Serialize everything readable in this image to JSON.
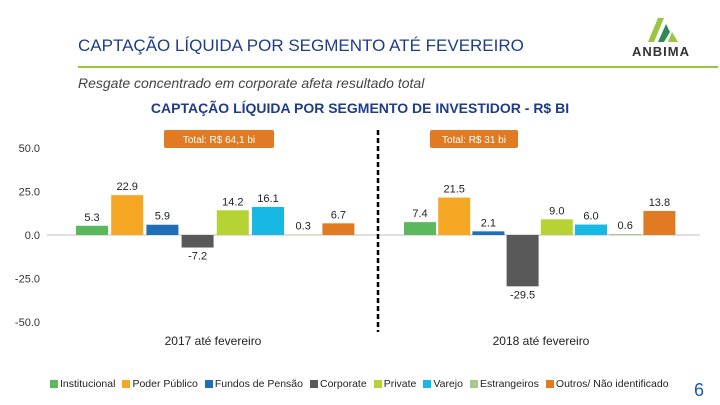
{
  "header": {
    "title": "CAPTAÇÃO LÍQUIDA POR SEGMENTO ATÉ FEVEREIRO",
    "subtitle": "Resgate concentrado em corporate afeta resultado total",
    "logo_text": "ANBIMA"
  },
  "page_number": "6",
  "chart_data": {
    "type": "bar",
    "title": "CAPTAÇÃO LÍQUIDA POR SEGMENTO DE INVESTIDOR - R$ BI",
    "categories": [
      "2017 até fevereiro",
      "2018 até fevereiro"
    ],
    "totals": [
      "Total: R$ 64,1 bi",
      "Total: R$ 31 bi"
    ],
    "series": [
      {
        "name": "Institucional",
        "color": "#5cb85c",
        "values": [
          5.3,
          7.4
        ],
        "labels": [
          "5.3",
          "7.4"
        ]
      },
      {
        "name": "Poder Público",
        "color": "#f5a623",
        "values": [
          22.9,
          21.5
        ],
        "labels": [
          "22.9",
          "21.5"
        ]
      },
      {
        "name": "Fundos de Pensão",
        "color": "#1e6fb8",
        "values": [
          5.9,
          2.1
        ],
        "labels": [
          "5.9",
          "2.1"
        ]
      },
      {
        "name": "Corporate",
        "color": "#595959",
        "values": [
          -7.2,
          -29.5
        ],
        "labels": [
          "-7.2",
          "-29.5"
        ]
      },
      {
        "name": "Private",
        "color": "#b5d334",
        "values": [
          14.2,
          9.0
        ],
        "labels": [
          "14.2",
          "9.0"
        ]
      },
      {
        "name": "Varejo",
        "color": "#17b8e3",
        "values": [
          16.1,
          6.0
        ],
        "labels": [
          "16.1",
          "6.0"
        ]
      },
      {
        "name": "Estrangeiros",
        "color": "#a9c98c",
        "values": [
          0.3,
          0.6
        ],
        "labels": [
          "0.3",
          "0.6"
        ]
      },
      {
        "name": "Outros/ Não identificado",
        "color": "#e07b24",
        "values": [
          6.7,
          13.8
        ],
        "labels": [
          "6.7",
          "13.8"
        ]
      }
    ],
    "yticks": [
      50,
      25,
      0,
      -25,
      -50
    ],
    "ytick_labels": [
      "50.0",
      "25.0",
      "0.0",
      "-25.0",
      "-50.0"
    ],
    "ylim": [
      -50,
      50
    ],
    "xlabel": "",
    "ylabel": "",
    "legend": "bottom"
  }
}
